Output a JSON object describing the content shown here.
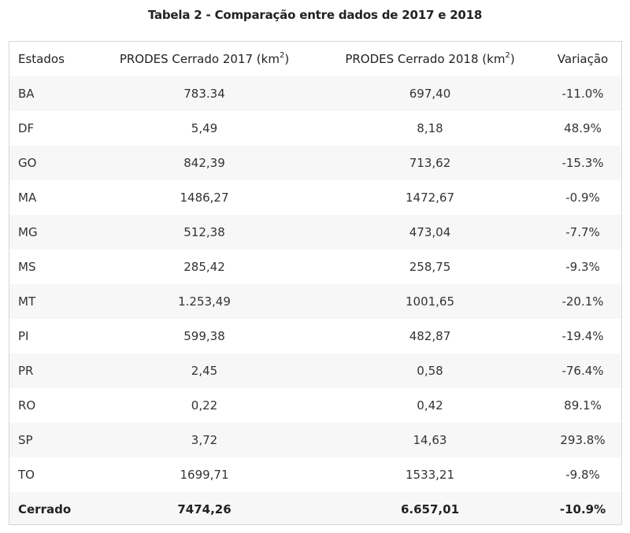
{
  "caption": "Tabela 2 - Comparação entre dados de 2017 e 2018",
  "headers": {
    "state": "Estados",
    "col2017": "PRODES Cerrado 2017 (km",
    "col2017_sup": "2",
    "col2017_end": ")",
    "col2018": "PRODES Cerrado 2018 (km",
    "col2018_sup": "2",
    "col2018_end": ")",
    "variation": "Variação"
  },
  "rows": [
    {
      "state": "BA",
      "v2017": "783.34",
      "v2018": "697,40",
      "variation": "-11.0%"
    },
    {
      "state": "DF",
      "v2017": "5,49",
      "v2018": "8,18",
      "variation": "48.9%"
    },
    {
      "state": "GO",
      "v2017": "842,39",
      "v2018": "713,62",
      "variation": "-15.3%"
    },
    {
      "state": "MA",
      "v2017": "1486,27",
      "v2018": "1472,67",
      "variation": "-0.9%"
    },
    {
      "state": "MG",
      "v2017": "512,38",
      "v2018": "473,04",
      "variation": "-7.7%"
    },
    {
      "state": "MS",
      "v2017": "285,42",
      "v2018": "258,75",
      "variation": "-9.3%"
    },
    {
      "state": "MT",
      "v2017": "1.253,49",
      "v2018": "1001,65",
      "variation": "-20.1%"
    },
    {
      "state": "PI",
      "v2017": "599,38",
      "v2018": "482,87",
      "variation": "-19.4%"
    },
    {
      "state": "PR",
      "v2017": "2,45",
      "v2018": "0,58",
      "variation": "-76.4%"
    },
    {
      "state": "RO",
      "v2017": "0,22",
      "v2018": "0,42",
      "variation": "89.1%"
    },
    {
      "state": "SP",
      "v2017": "3,72",
      "v2018": "14,63",
      "variation": "293.8%"
    },
    {
      "state": "TO",
      "v2017": "1699,71",
      "v2018": "1533,21",
      "variation": "-9.8%"
    }
  ],
  "total": {
    "state": "Cerrado",
    "v2017": "7474,26",
    "v2018": "6.657,01",
    "variation": "-10.9%"
  }
}
